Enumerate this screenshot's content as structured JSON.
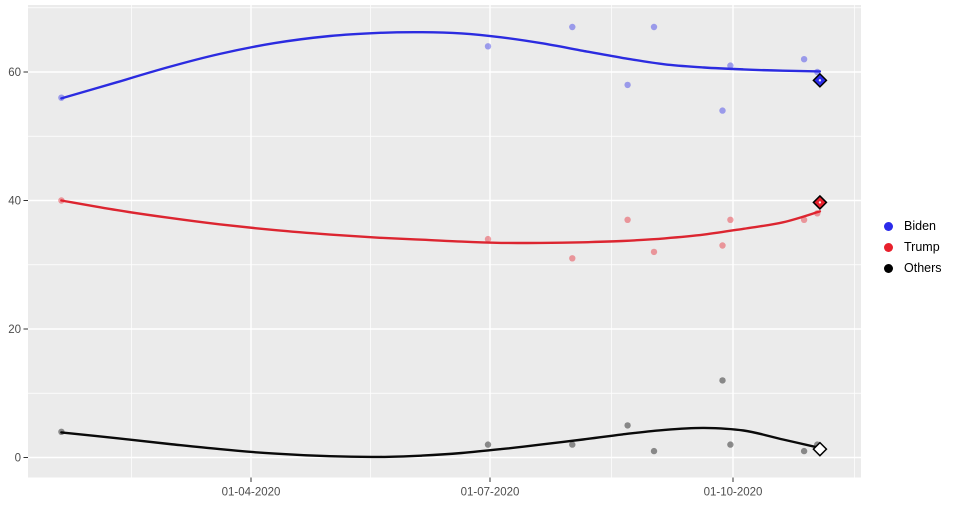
{
  "page": {
    "background": "#FFFFFF",
    "panel_background": "#EBEBEB",
    "grid_color": "#FFFFFF",
    "axis_text_color": "#4D4D4D",
    "tick_mark_color": "#333333"
  },
  "chart_data": {
    "type": "scatter",
    "title": "",
    "xlabel": "",
    "ylabel": "",
    "grid": "on",
    "x_axis": {
      "tick_labels": [
        "01-04-2020",
        "01-07-2020",
        "01-10-2020"
      ],
      "tick_dates": [
        "2020-04-01",
        "2020-07-01",
        "2020-10-01"
      ],
      "date_range": [
        "2020-01-20",
        "2020-11-03"
      ]
    },
    "y_axis": {
      "tick_labels": [
        "0",
        "20",
        "40",
        "60"
      ],
      "ticks": [
        0,
        20,
        40,
        60
      ],
      "minor_ticks": [
        10,
        30,
        50,
        70
      ],
      "range": [
        -3,
        70.5
      ]
    },
    "legend": {
      "position": "right",
      "entries": [
        {
          "label": "Biden",
          "color": "#2B2BEA"
        },
        {
          "label": "Trump",
          "color": "#E8202C"
        },
        {
          "label": "Others",
          "color": "#000000"
        }
      ]
    },
    "series": [
      {
        "name": "Biden",
        "line_color": "#2B2BE0",
        "point_color": "#2B2BEA",
        "point_opacity": 0.42,
        "points": [
          {
            "date": "2020-01-20",
            "value": 56
          },
          {
            "date": "2020-06-30",
            "value": 64
          },
          {
            "date": "2020-08-01",
            "value": 67
          },
          {
            "date": "2020-08-22",
            "value": 58
          },
          {
            "date": "2020-09-01",
            "value": 67
          },
          {
            "date": "2020-09-27",
            "value": 54
          },
          {
            "date": "2020-09-30",
            "value": 61
          },
          {
            "date": "2020-10-28",
            "value": 62
          },
          {
            "date": "2020-11-02",
            "value": 60
          }
        ],
        "smooth": [
          {
            "date": "2020-01-20",
            "value": 55.9
          },
          {
            "date": "2020-02-10",
            "value": 58.4
          },
          {
            "date": "2020-03-01",
            "value": 60.8
          },
          {
            "date": "2020-03-20",
            "value": 62.8
          },
          {
            "date": "2020-04-10",
            "value": 64.5
          },
          {
            "date": "2020-05-01",
            "value": 65.6
          },
          {
            "date": "2020-05-20",
            "value": 66.1
          },
          {
            "date": "2020-06-05",
            "value": 66.2
          },
          {
            "date": "2020-06-20",
            "value": 66.0
          },
          {
            "date": "2020-07-05",
            "value": 65.4
          },
          {
            "date": "2020-07-20",
            "value": 64.5
          },
          {
            "date": "2020-08-05",
            "value": 63.3
          },
          {
            "date": "2020-08-20",
            "value": 62.2
          },
          {
            "date": "2020-09-05",
            "value": 61.2
          },
          {
            "date": "2020-09-20",
            "value": 60.7
          },
          {
            "date": "2020-10-05",
            "value": 60.4
          },
          {
            "date": "2020-10-20",
            "value": 60.2
          },
          {
            "date": "2020-11-03",
            "value": 60.1
          }
        ],
        "final_marker": {
          "date": "2020-11-03",
          "value": 58.7,
          "fill": "#2B2BEA",
          "stroke": "#000000"
        }
      },
      {
        "name": "Trump",
        "line_color": "#DC2530",
        "point_color": "#E8202C",
        "point_opacity": 0.42,
        "points": [
          {
            "date": "2020-01-20",
            "value": 40
          },
          {
            "date": "2020-06-30",
            "value": 34
          },
          {
            "date": "2020-08-01",
            "value": 31
          },
          {
            "date": "2020-08-22",
            "value": 37
          },
          {
            "date": "2020-09-01",
            "value": 32
          },
          {
            "date": "2020-09-27",
            "value": 33
          },
          {
            "date": "2020-09-30",
            "value": 37
          },
          {
            "date": "2020-10-28",
            "value": 37
          },
          {
            "date": "2020-11-02",
            "value": 38
          }
        ],
        "smooth": [
          {
            "date": "2020-01-20",
            "value": 40.0
          },
          {
            "date": "2020-02-10",
            "value": 38.5
          },
          {
            "date": "2020-03-01",
            "value": 37.3
          },
          {
            "date": "2020-03-20",
            "value": 36.3
          },
          {
            "date": "2020-04-10",
            "value": 35.4
          },
          {
            "date": "2020-05-01",
            "value": 34.7
          },
          {
            "date": "2020-05-20",
            "value": 34.2
          },
          {
            "date": "2020-06-05",
            "value": 33.9
          },
          {
            "date": "2020-06-20",
            "value": 33.6
          },
          {
            "date": "2020-07-05",
            "value": 33.4
          },
          {
            "date": "2020-07-20",
            "value": 33.4
          },
          {
            "date": "2020-08-05",
            "value": 33.5
          },
          {
            "date": "2020-08-20",
            "value": 33.7
          },
          {
            "date": "2020-09-05",
            "value": 34.1
          },
          {
            "date": "2020-09-20",
            "value": 34.7
          },
          {
            "date": "2020-10-05",
            "value": 35.6
          },
          {
            "date": "2020-10-20",
            "value": 36.6
          },
          {
            "date": "2020-11-03",
            "value": 38.3
          }
        ],
        "final_marker": {
          "date": "2020-11-03",
          "value": 39.7,
          "fill": "#E8202C",
          "stroke": "#000000"
        }
      },
      {
        "name": "Others",
        "line_color": "#0A0A0A",
        "point_color": "#000000",
        "point_opacity": 0.42,
        "points": [
          {
            "date": "2020-01-20",
            "value": 4
          },
          {
            "date": "2020-06-30",
            "value": 2
          },
          {
            "date": "2020-08-01",
            "value": 2
          },
          {
            "date": "2020-08-22",
            "value": 5
          },
          {
            "date": "2020-09-01",
            "value": 1
          },
          {
            "date": "2020-09-27",
            "value": 12
          },
          {
            "date": "2020-09-30",
            "value": 2
          },
          {
            "date": "2020-10-28",
            "value": 1
          },
          {
            "date": "2020-11-02",
            "value": 2
          }
        ],
        "smooth": [
          {
            "date": "2020-01-20",
            "value": 3.9
          },
          {
            "date": "2020-02-10",
            "value": 3.0
          },
          {
            "date": "2020-03-01",
            "value": 2.1
          },
          {
            "date": "2020-03-20",
            "value": 1.3
          },
          {
            "date": "2020-04-10",
            "value": 0.6
          },
          {
            "date": "2020-05-01",
            "value": 0.2
          },
          {
            "date": "2020-05-20",
            "value": 0.1
          },
          {
            "date": "2020-06-05",
            "value": 0.3
          },
          {
            "date": "2020-06-20",
            "value": 0.7
          },
          {
            "date": "2020-07-05",
            "value": 1.3
          },
          {
            "date": "2020-07-20",
            "value": 2.0
          },
          {
            "date": "2020-08-05",
            "value": 2.8
          },
          {
            "date": "2020-08-20",
            "value": 3.6
          },
          {
            "date": "2020-09-05",
            "value": 4.3
          },
          {
            "date": "2020-09-20",
            "value": 4.6
          },
          {
            "date": "2020-10-05",
            "value": 4.2
          },
          {
            "date": "2020-10-20",
            "value": 2.8
          },
          {
            "date": "2020-11-03",
            "value": 1.5
          }
        ],
        "final_marker": {
          "date": "2020-11-03",
          "value": 1.3,
          "fill": "#FFFFFF",
          "stroke": "#000000"
        }
      }
    ]
  }
}
